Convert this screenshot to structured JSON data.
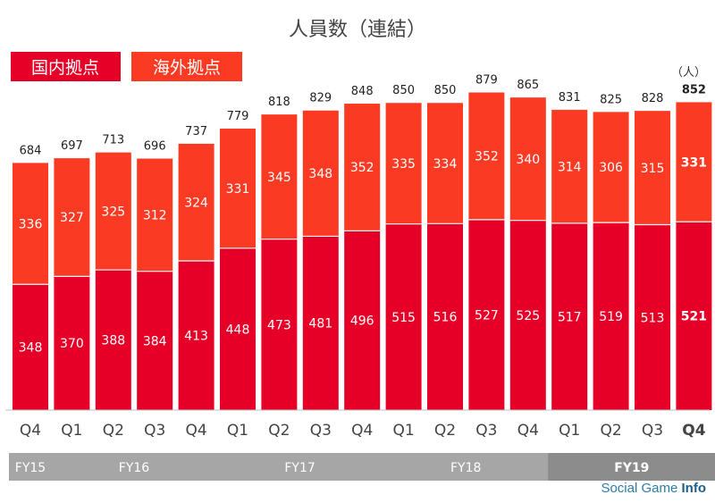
{
  "chart_data": {
    "type": "bar",
    "stacked": true,
    "title": "人員数（連結）",
    "unit_label": "（人）",
    "categories": [
      "Q4",
      "Q1",
      "Q2",
      "Q3",
      "Q4",
      "Q1",
      "Q2",
      "Q3",
      "Q4",
      "Q1",
      "Q2",
      "Q3",
      "Q4",
      "Q1",
      "Q2",
      "Q3",
      "Q4"
    ],
    "series": [
      {
        "name": "国内拠点",
        "color": "#e60028",
        "values": [
          348,
          370,
          388,
          384,
          413,
          448,
          473,
          481,
          496,
          515,
          516,
          527,
          525,
          517,
          519,
          513,
          521
        ]
      },
      {
        "name": "海外拠点",
        "color": "#fb3a23",
        "values": [
          336,
          327,
          325,
          312,
          324,
          331,
          345,
          348,
          352,
          335,
          334,
          352,
          340,
          314,
          306,
          315,
          331
        ]
      }
    ],
    "totals": [
      684,
      697,
      713,
      696,
      737,
      779,
      818,
      829,
      848,
      850,
      850,
      879,
      865,
      831,
      825,
      828,
      852
    ],
    "highlight_last": true,
    "fiscal_years": [
      {
        "label": "FY15",
        "start": 0,
        "end": 0
      },
      {
        "label": "FY16",
        "start": 1,
        "end": 4
      },
      {
        "label": "FY17",
        "start": 5,
        "end": 8
      },
      {
        "label": "FY18",
        "start": 9,
        "end": 12
      },
      {
        "label": "FY19",
        "start": 13,
        "end": 16
      }
    ],
    "ylim": [
      0,
      900
    ],
    "grid": false
  },
  "watermark": {
    "prefix": "Social Game ",
    "suffix": "Info"
  }
}
